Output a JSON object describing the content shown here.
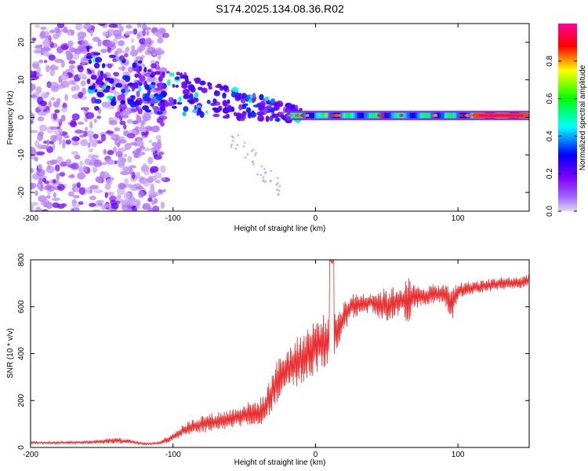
{
  "title": "S174.2025.134.08.36.R02",
  "colors": {
    "snr_line": "#e83030",
    "colorbar_stops": [
      "#ddd8ee",
      "#7a00ff",
      "#0000ff",
      "#00ffff",
      "#00ff00",
      "#ffff00",
      "#ff0000",
      "#ff00aa"
    ]
  },
  "chart_data": [
    {
      "type": "heatmap",
      "title": "S174.2025.134.08.36.R02",
      "xlabel": "Height of straight line (km)",
      "ylabel": "Frequency (Hz)",
      "xlim": [
        -200,
        150
      ],
      "ylim": [
        -25,
        25
      ],
      "xticks": [
        -200,
        -100,
        0,
        100
      ],
      "yticks": [
        -20,
        -10,
        0,
        10,
        20
      ],
      "grid": false,
      "colorbar": {
        "label": "Normalized spectral amplitude",
        "range": [
          0.0,
          1.0
        ],
        "ticks": [
          0.0,
          0.2,
          0.4,
          0.6,
          0.8
        ]
      },
      "features": {
        "tone_frequency_hz": 0.5,
        "tone_onset_km": -20,
        "scatter_end_km": -105,
        "strongest_region_km": [
          110,
          150
        ]
      }
    },
    {
      "type": "line",
      "xlabel": "Height of straight line (km)",
      "ylabel": "SNR (10 * v/v)",
      "xlim": [
        -200,
        150
      ],
      "ylim": [
        0,
        800
      ],
      "xticks": [
        -200,
        -100,
        0,
        100
      ],
      "yticks": [
        0,
        200,
        400,
        600,
        800
      ],
      "grid": false,
      "series": [
        {
          "x": [
            -200,
            -180,
            -160,
            -140,
            -130,
            -120,
            -110,
            -100,
            -90,
            -80,
            -70,
            -60,
            -50,
            -40,
            -35,
            -30,
            -25,
            -20,
            -15,
            -10,
            -5,
            0,
            5,
            10,
            12,
            15,
            20,
            25,
            30,
            40,
            50,
            60,
            65,
            70,
            80,
            90,
            95,
            100,
            110,
            120,
            130,
            140,
            150
          ],
          "y": [
            20,
            20,
            22,
            30,
            25,
            15,
            18,
            45,
            80,
            100,
            110,
            120,
            140,
            150,
            170,
            250,
            300,
            330,
            350,
            380,
            400,
            430,
            450,
            470,
            480,
            500,
            560,
            600,
            610,
            620,
            600,
            630,
            620,
            640,
            650,
            660,
            600,
            670,
            680,
            690,
            700,
            700,
            710
          ],
          "spread": [
            10,
            10,
            12,
            25,
            15,
            8,
            12,
            35,
            55,
            70,
            75,
            80,
            90,
            100,
            120,
            160,
            170,
            180,
            190,
            200,
            220,
            220,
            210,
            200,
            180,
            160,
            120,
            100,
            90,
            80,
            150,
            110,
            200,
            90,
            80,
            70,
            160,
            60,
            55,
            50,
            50,
            50,
            50
          ]
        }
      ]
    }
  ]
}
